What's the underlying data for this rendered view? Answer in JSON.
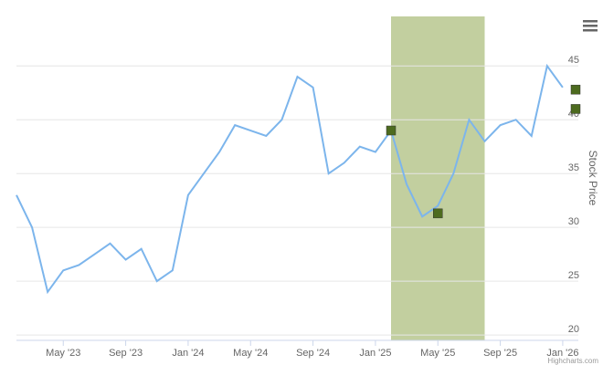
{
  "chart_data": {
    "type": "line",
    "y_axis_title": "Stock Price",
    "credit": "Highcharts.com",
    "x": [
      "2023-02",
      "2023-03",
      "2023-04",
      "2023-05",
      "2023-06",
      "2023-07",
      "2023-08",
      "2023-09",
      "2023-10",
      "2023-11",
      "2023-12",
      "2024-01",
      "2024-02",
      "2024-03",
      "2024-04",
      "2024-05",
      "2024-06",
      "2024-07",
      "2024-08",
      "2024-09",
      "2024-10",
      "2024-11",
      "2024-12",
      "2025-01",
      "2025-02",
      "2025-03",
      "2025-04",
      "2025-05",
      "2025-06",
      "2025-07",
      "2025-08",
      "2025-09",
      "2025-10",
      "2025-11",
      "2025-12",
      "2026-01"
    ],
    "series": [
      {
        "color": "#7cb5ec",
        "values": [
          33,
          30,
          24,
          26,
          26.5,
          27.5,
          28.5,
          27,
          28,
          25,
          26,
          33,
          35,
          37,
          39.5,
          39,
          38.5,
          40,
          44,
          43,
          35,
          36,
          37.5,
          37,
          39,
          34,
          31,
          32,
          35,
          40,
          38,
          39.5,
          40,
          38.5,
          45,
          43
        ]
      }
    ],
    "markers": {
      "color": "#4d6b1f",
      "x": [
        "2025-02",
        "2025-05",
        "2026-02",
        "2026-02"
      ],
      "values": [
        39,
        31.3,
        42.8,
        41
      ]
    },
    "band": {
      "color": "#c2cf9f",
      "from": "2025-02",
      "to": "2025-08"
    },
    "xlim": [
      "2023-02",
      "2026-02"
    ],
    "xticks": [
      {
        "value": "2023-05",
        "label": "May '23"
      },
      {
        "value": "2023-09",
        "label": "Sep '23"
      },
      {
        "value": "2024-01",
        "label": "Jan '24"
      },
      {
        "value": "2024-05",
        "label": "May '24"
      },
      {
        "value": "2024-09",
        "label": "Sep '24"
      },
      {
        "value": "2025-01",
        "label": "Jan '25"
      },
      {
        "value": "2025-05",
        "label": "May '25"
      },
      {
        "value": "2025-09",
        "label": "Sep '25"
      },
      {
        "value": "2026-01",
        "label": "Jan '26"
      }
    ],
    "ylim": [
      19.5,
      49.6
    ],
    "yticks": [
      20,
      25,
      30,
      35,
      40,
      45
    ],
    "grid": true
  }
}
